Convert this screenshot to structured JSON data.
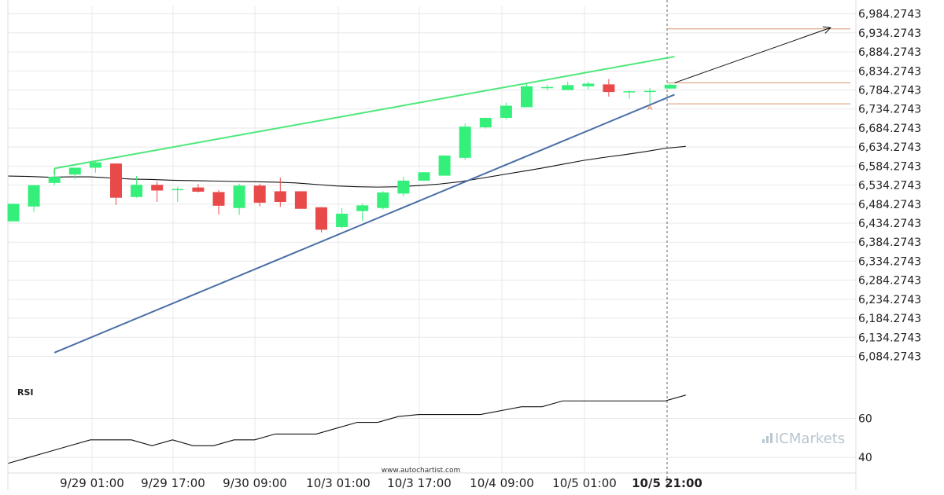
{
  "colors": {
    "bull": "#34f07a",
    "bear": "#e84a4a",
    "upper_channel": "#4ce879",
    "lower_channel": "#4a6fa5",
    "moving_average": "#111111",
    "levels": "#d4956b",
    "projection": "#111111",
    "grid": "#e8e8e8",
    "panel_border": "#dddddd"
  },
  "chart_data": {
    "type": "candlestick",
    "x_categories": [
      "9/29 01:00",
      "9/29 17:00",
      "9/30 09:00",
      "10/3 01:00",
      "10/3 17:00",
      "10/4 09:00",
      "10/5 01:00",
      "10/5 21:00"
    ],
    "x_highlight": "10/5 21:00",
    "ylim": [
      6054.2743,
      7004.2743
    ],
    "yticks": [
      6984.2743,
      6934.2743,
      6884.2743,
      6834.2743,
      6784.2743,
      6734.2743,
      6684.2743,
      6634.2743,
      6584.2743,
      6534.2743,
      6484.2743,
      6434.2743,
      6384.2743,
      6334.2743,
      6284.2743,
      6234.2743,
      6184.2743,
      6134.2743,
      6084.2743
    ],
    "ytick_labels": [
      "6,984.2743",
      "6,934.2743",
      "6,884.2743",
      "6,834.2743",
      "6,784.2743",
      "6,734.2743",
      "6,684.2743",
      "6,634.2743",
      "6,584.2743",
      "6,534.2743",
      "6,484.2743",
      "6,434.2743",
      "6,384.2743",
      "6,334.2743",
      "6,284.2743",
      "6,234.2743",
      "6,184.2743",
      "6,134.2743",
      "6,084.2743"
    ],
    "candles": [
      {
        "o": 6439,
        "h": 6485,
        "l": 6439,
        "c": 6485
      },
      {
        "o": 6478,
        "h": 6534,
        "l": 6464,
        "c": 6534
      },
      {
        "o": 6540,
        "h": 6564,
        "l": 6534,
        "c": 6556
      },
      {
        "o": 6562,
        "h": 6580,
        "l": 6550,
        "c": 6580
      },
      {
        "o": 6580,
        "h": 6597,
        "l": 6567,
        "c": 6594
      },
      {
        "o": 6591,
        "h": 6591,
        "l": 6482,
        "c": 6501
      },
      {
        "o": 6503,
        "h": 6558,
        "l": 6501,
        "c": 6535
      },
      {
        "o": 6535,
        "h": 6544,
        "l": 6490,
        "c": 6520
      },
      {
        "o": 6522,
        "h": 6530,
        "l": 6490,
        "c": 6524
      },
      {
        "o": 6528,
        "h": 6537,
        "l": 6515,
        "c": 6517
      },
      {
        "o": 6516,
        "h": 6521,
        "l": 6457,
        "c": 6480
      },
      {
        "o": 6474,
        "h": 6538,
        "l": 6456,
        "c": 6533
      },
      {
        "o": 6533,
        "h": 6538,
        "l": 6478,
        "c": 6488
      },
      {
        "o": 6518,
        "h": 6554,
        "l": 6477,
        "c": 6490
      },
      {
        "o": 6518,
        "h": 6518,
        "l": 6472,
        "c": 6472
      },
      {
        "o": 6476,
        "h": 6476,
        "l": 6410,
        "c": 6417
      },
      {
        "o": 6424,
        "h": 6474,
        "l": 6421,
        "c": 6459
      },
      {
        "o": 6466,
        "h": 6486,
        "l": 6440,
        "c": 6481
      },
      {
        "o": 6474,
        "h": 6518,
        "l": 6470,
        "c": 6515
      },
      {
        "o": 6512,
        "h": 6556,
        "l": 6505,
        "c": 6546
      },
      {
        "o": 6546,
        "h": 6568,
        "l": 6545,
        "c": 6568
      },
      {
        "o": 6559,
        "h": 6612,
        "l": 6559,
        "c": 6612
      },
      {
        "o": 6606,
        "h": 6696,
        "l": 6600,
        "c": 6688
      },
      {
        "o": 6686,
        "h": 6712,
        "l": 6683,
        "c": 6711
      },
      {
        "o": 6711,
        "h": 6751,
        "l": 6706,
        "c": 6743
      },
      {
        "o": 6739,
        "h": 6800,
        "l": 6739,
        "c": 6794
      },
      {
        "o": 6790,
        "h": 6798,
        "l": 6784,
        "c": 6792
      },
      {
        "o": 6784,
        "h": 6806,
        "l": 6784,
        "c": 6797
      },
      {
        "o": 6794,
        "h": 6806,
        "l": 6786,
        "c": 6801
      },
      {
        "o": 6799,
        "h": 6813,
        "l": 6767,
        "c": 6779
      },
      {
        "o": 6781,
        "h": 6783,
        "l": 6761,
        "c": 6781
      },
      {
        "o": 6782,
        "h": 6790,
        "l": 6746,
        "c": 6782
      },
      {
        "o": 6788,
        "h": 6800,
        "l": 6788,
        "c": 6798
      }
    ],
    "moving_average": [
      6558,
      6557,
      6555,
      6556,
      6556,
      6553,
      6550,
      6549,
      6547,
      6546,
      6545,
      6544,
      6543,
      6542,
      6540,
      6536,
      6532,
      6530,
      6529,
      6530,
      6533,
      6537,
      6543,
      6552,
      6561,
      6570,
      6579,
      6589,
      6599,
      6607,
      6614,
      6622,
      6631,
      6636
    ],
    "upper_channel": {
      "from": [
        2,
        6578
      ],
      "to": [
        32.2,
        6872
      ]
    },
    "lower_channel": {
      "from": [
        2,
        6094
      ],
      "to": [
        32.2,
        6772
      ]
    },
    "levels": [
      6945,
      6803,
      6748
    ],
    "projection": {
      "from": [
        32.2,
        6803
      ],
      "to": [
        39.8,
        6948
      ]
    },
    "pattern_point": {
      "label": "A",
      "index": 31,
      "price": 6732
    },
    "rsi": {
      "label": "RSI",
      "ylim": [
        32,
        82
      ],
      "yticks": [
        60,
        40
      ],
      "ytick_labels": [
        "60",
        "40"
      ],
      "values": [
        37,
        40,
        43,
        46,
        49,
        49,
        49,
        46,
        49,
        46,
        46,
        49,
        49,
        52,
        52,
        52,
        55,
        58,
        58,
        61,
        62,
        62,
        62,
        62,
        64,
        66,
        66,
        69,
        69,
        69,
        69,
        69,
        69,
        72
      ]
    }
  },
  "footer": {
    "source_url": "www.autochartist.com"
  },
  "brand": {
    "logo_text": "ICMarkets"
  }
}
